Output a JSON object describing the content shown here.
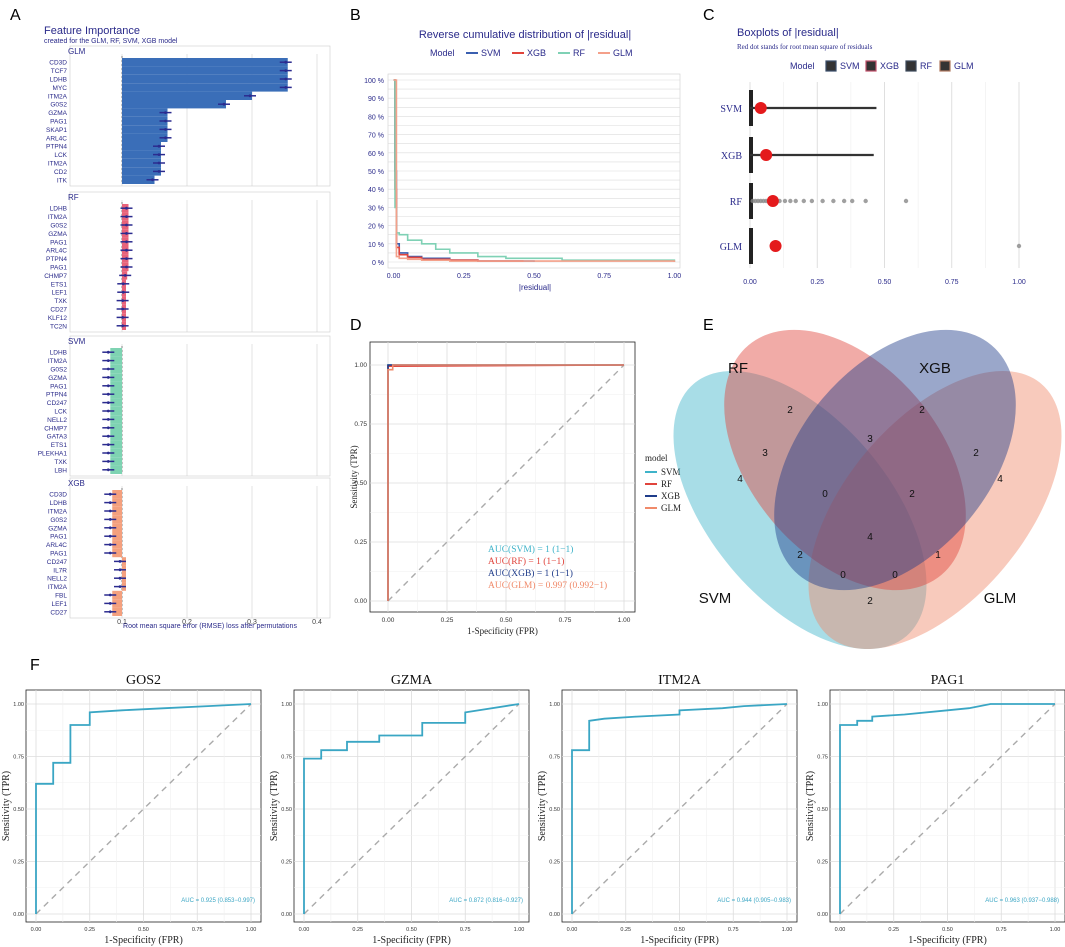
{
  "panel_letters": [
    "A",
    "B",
    "C",
    "D",
    "E",
    "F"
  ],
  "colors": {
    "svm": "#3fb3c9",
    "rf": "#e0443c",
    "xgb": "#1f3c8a",
    "glm": "#f08a6a",
    "navy": "#2a2a8a",
    "fiGLM": "#3a6eb8",
    "fiRF": "#e8637a",
    "fiSVM": "#7ed3b2",
    "fiXGB": "#f4a07e",
    "point": "#2b2b8f",
    "red": "#e41a1c",
    "roc": "#3aa6c4",
    "grid": "#dcdcdc"
  },
  "chart_data": [
    {
      "panel": "A",
      "type": "bar",
      "title": "Feature Importance",
      "subtitle": "created for the GLM, RF, SVM, XGB model",
      "xlabel": "Root mean square error (RMSE) loss after permutations",
      "xticks": [
        "0.1",
        "0.2",
        "0.3",
        "0.4"
      ],
      "xlim": [
        0.02,
        0.42
      ],
      "baseline": 0.1,
      "groups": [
        {
          "name": "GLM",
          "features": [
            "CD3D",
            "TCF7",
            "LDHB",
            "MYC",
            "ITM2A",
            "G0S2",
            "GZMA",
            "PAG1",
            "SKAP1",
            "ARL4C",
            "PTPN4",
            "LCK",
            "ITM2A",
            "CD2",
            "ITK"
          ],
          "values": [
            0.355,
            0.355,
            0.355,
            0.355,
            0.3,
            0.26,
            0.17,
            0.17,
            0.17,
            0.17,
            0.16,
            0.16,
            0.16,
            0.16,
            0.15
          ]
        },
        {
          "name": "RF",
          "features": [
            "LDHB",
            "ITM2A",
            "G0S2",
            "GZMA",
            "PAG1",
            "ARL4C",
            "PTPN4",
            "PAG1",
            "CHMP7",
            "ETS1",
            "LEF1",
            "TXK",
            "CD27",
            "KLF12",
            "TC2N"
          ],
          "values": [
            0.11,
            0.11,
            0.11,
            0.11,
            0.11,
            0.11,
            0.11,
            0.11,
            0.108,
            0.105,
            0.105,
            0.104,
            0.104,
            0.104,
            0.104
          ]
        },
        {
          "name": "SVM",
          "features": [
            "LDHB",
            "ITM2A",
            "G0S2",
            "GZMA",
            "PAG1",
            "PTPN4",
            "CD247",
            "LCK",
            "NELL2",
            "CHMP7",
            "GATA3",
            "ETS1",
            "PLEKHA1",
            "TXK",
            "LBH"
          ],
          "values": [
            0.082,
            0.082,
            0.082,
            0.082,
            0.082,
            0.082,
            0.082,
            0.082,
            0.082,
            0.082,
            0.082,
            0.082,
            0.082,
            0.082,
            0.082
          ]
        },
        {
          "name": "XGB",
          "features": [
            "CD3D",
            "LDHB",
            "ITM2A",
            "G0S2",
            "GZMA",
            "PAG1",
            "ARL4C",
            "PAG1",
            "CD247",
            "IL7R",
            "NELL2",
            "ITM2A",
            "FBL",
            "LEF1",
            "CD27"
          ],
          "values": [
            0.085,
            0.085,
            0.085,
            0.085,
            0.085,
            0.085,
            0.085,
            0.085,
            0.1,
            0.1,
            0.1,
            0.1,
            0.085,
            0.085,
            0.085
          ]
        }
      ]
    },
    {
      "panel": "B",
      "type": "line",
      "title": "Reverse cumulative distribution of |residual|",
      "xlabel": "|residual|",
      "legend_title": "Model",
      "legend": [
        "SVM",
        "XGB",
        "RF",
        "GLM"
      ],
      "yticks": [
        "0 %",
        "10 %",
        "20 %",
        "30 %",
        "40 %",
        "50 %",
        "60 %",
        "70 %",
        "80 %",
        "90 %",
        "100 %"
      ],
      "xticks": [
        "0.00",
        "0.25",
        "0.50",
        "0.75",
        "1.00"
      ],
      "xlim": [
        -0.02,
        1.02
      ],
      "ylim": [
        0,
        100
      ],
      "series": [
        {
          "name": "SVM",
          "x": [
            0,
            0.005,
            0.01,
            0.02,
            0.05,
            0.1,
            0.2,
            0.3,
            0.5
          ],
          "y": [
            100,
            50,
            10,
            5,
            3,
            2,
            1,
            0.5,
            0
          ]
        },
        {
          "name": "XGB",
          "x": [
            0,
            0.005,
            0.01,
            0.02,
            0.05,
            0.1,
            0.2,
            0.3,
            0.46
          ],
          "y": [
            100,
            40,
            8,
            4,
            2.5,
            1.5,
            1,
            0.5,
            0
          ]
        },
        {
          "name": "RF",
          "x": [
            0,
            0.005,
            0.01,
            0.02,
            0.05,
            0.1,
            0.15,
            0.2,
            0.3,
            0.4,
            0.6,
            1.0
          ],
          "y": [
            100,
            30,
            16,
            15,
            12,
            10,
            7,
            5,
            3,
            2,
            1,
            0
          ]
        },
        {
          "name": "GLM",
          "x": [
            0,
            0.003,
            0.01,
            0.02,
            0.05,
            0.1,
            0.2,
            0.3,
            1.0
          ],
          "y": [
            100,
            100,
            3,
            2,
            1.5,
            1,
            0.5,
            0.5,
            0
          ]
        }
      ]
    },
    {
      "panel": "C",
      "type": "box",
      "title": "Boxplots of |residual|",
      "subtitle": "Red dot stands for root mean square of residuals",
      "legend_title": "Model",
      "legend": [
        "SVM",
        "XGB",
        "RF",
        "GLM"
      ],
      "xticks": [
        "0.00",
        "0.25",
        "0.50",
        "0.75",
        "1.00"
      ],
      "categories": [
        "SVM",
        "XGB",
        "RF",
        "GLM"
      ],
      "whisker_max": [
        0.47,
        0.46,
        0.0,
        0.0
      ],
      "rmse": [
        0.04,
        0.06,
        0.085,
        0.095
      ],
      "outliers": {
        "RF": [
          0.01,
          0.02,
          0.03,
          0.04,
          0.05,
          0.06,
          0.07,
          0.09,
          0.11,
          0.13,
          0.15,
          0.17,
          0.2,
          0.23,
          0.27,
          0.31,
          0.35,
          0.38,
          0.43,
          0.58
        ],
        "GLM": [
          1.0
        ]
      }
    },
    {
      "panel": "D",
      "type": "line",
      "xlabel": "1-Specificity (FPR)",
      "ylabel": "Sensitivity (TPR)",
      "xticks": [
        "0.00",
        "0.25",
        "0.50",
        "0.75",
        "1.00"
      ],
      "yticks": [
        "0.00",
        "0.25",
        "0.50",
        "0.75",
        "1.00"
      ],
      "legend_title": "model",
      "legend": [
        "SVM",
        "RF",
        "XGB",
        "GLM"
      ],
      "auc_labels": [
        "AUC(SVM) = 1 (1−1)",
        "AUC(RF) = 1 (1−1)",
        "AUC(XGB) = 1 (1−1)",
        "AUC(GLM) = 0.997 (0.992−1)"
      ],
      "series": [
        {
          "name": "SVM",
          "x": [
            0,
            0,
            1
          ],
          "y": [
            0,
            1,
            1
          ]
        },
        {
          "name": "RF",
          "x": [
            0,
            0,
            1
          ],
          "y": [
            0,
            0.995,
            1
          ]
        },
        {
          "name": "XGB",
          "x": [
            0,
            0,
            1
          ],
          "y": [
            0,
            1,
            1
          ]
        },
        {
          "name": "GLM",
          "x": [
            0,
            0,
            0.02,
            0.02,
            1
          ],
          "y": [
            0,
            0.98,
            0.98,
            1,
            1
          ]
        }
      ]
    },
    {
      "panel": "E",
      "type": "venn",
      "sets": [
        "RF",
        "XGB",
        "SVM",
        "GLM"
      ],
      "counts": {
        "RF": "2",
        "XGB": "2",
        "SVM": "4",
        "GLM": "4",
        "RF_SVM": "3",
        "RF_XGB": "3",
        "XGB_GLM": "2",
        "SVM_XGB": "0",
        "RF_XGB_GLM": "2",
        "SVM_XGB_center": "2",
        "ALL": "4",
        "RF_GLM": "1",
        "SVM_GLM": "0",
        "RF_SVM_GLM": "0",
        "SVM_XGB_GLM": "2"
      }
    },
    {
      "panel": "F",
      "type": "line",
      "xlabel": "1-Specificity (FPR)",
      "ylabel": "Sensitivity (TPR)",
      "xticks": [
        "0.00",
        "0.25",
        "0.50",
        "0.75",
        "1.00"
      ],
      "yticks": [
        "0.00",
        "0.25",
        "0.50",
        "0.75",
        "1.00"
      ],
      "plots": [
        {
          "title": "GOS2",
          "auc": "AUC = 0.925 (0.853−0.997)",
          "x": [
            0,
            0,
            0.08,
            0.08,
            0.16,
            0.16,
            0.25,
            0.25,
            0.4,
            0.6,
            0.8,
            1
          ],
          "y": [
            0,
            0.62,
            0.62,
            0.72,
            0.72,
            0.9,
            0.9,
            0.96,
            0.97,
            0.98,
            0.99,
            1
          ]
        },
        {
          "title": "GZMA",
          "auc": "AUC = 0.872 (0.816−0.927)",
          "x": [
            0,
            0,
            0.08,
            0.08,
            0.2,
            0.2,
            0.35,
            0.35,
            0.55,
            0.55,
            0.75,
            0.75,
            1
          ],
          "y": [
            0,
            0.74,
            0.74,
            0.78,
            0.78,
            0.82,
            0.82,
            0.85,
            0.85,
            0.91,
            0.91,
            0.96,
            1
          ]
        },
        {
          "title": "ITM2A",
          "auc": "AUC = 0.944 (0.905−0.983)",
          "x": [
            0,
            0,
            0.08,
            0.08,
            0.15,
            0.3,
            0.5,
            0.5,
            0.7,
            0.8,
            1
          ],
          "y": [
            0,
            0.78,
            0.78,
            0.92,
            0.93,
            0.94,
            0.95,
            0.97,
            0.98,
            0.99,
            1
          ]
        },
        {
          "title": "PAG1",
          "auc": "AUC = 0.963 (0.937−0.988)",
          "x": [
            0,
            0,
            0.08,
            0.08,
            0.15,
            0.15,
            0.3,
            0.5,
            0.6,
            0.7,
            1
          ],
          "y": [
            0,
            0.9,
            0.9,
            0.92,
            0.92,
            0.94,
            0.95,
            0.97,
            0.98,
            1,
            1
          ]
        }
      ]
    }
  ]
}
